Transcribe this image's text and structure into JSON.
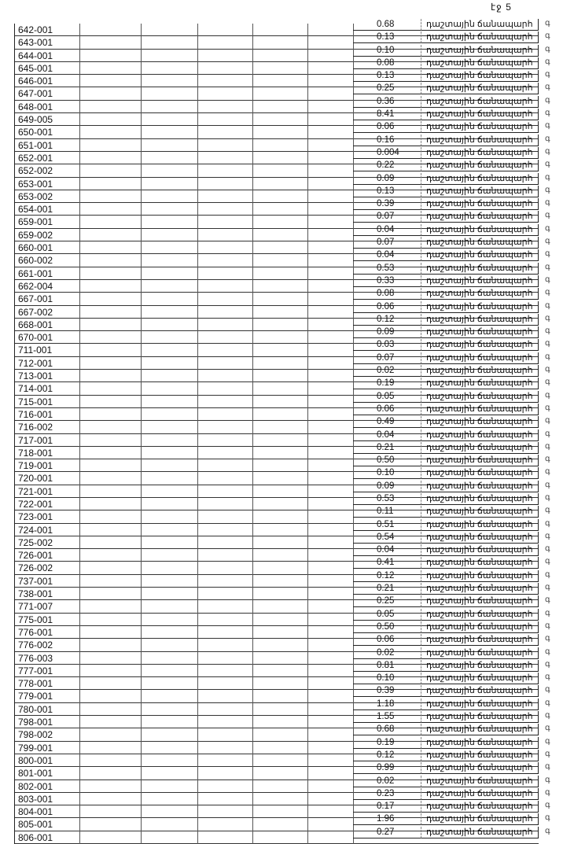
{
  "page_number": "էջ 5",
  "road_type": "դաշտային ճանապարհ",
  "edge_char": "գ",
  "rows": [
    {
      "id": "642-001",
      "area": "0.68"
    },
    {
      "id": "643-001",
      "area": "0.13"
    },
    {
      "id": "644-001",
      "area": "0.10"
    },
    {
      "id": "645-001",
      "area": "0.08"
    },
    {
      "id": "646-001",
      "area": "0.13"
    },
    {
      "id": "647-001",
      "area": "0.25"
    },
    {
      "id": "648-001",
      "area": "0.36"
    },
    {
      "id": "649-005",
      "area": "8.41"
    },
    {
      "id": "650-001",
      "area": "0.06"
    },
    {
      "id": "651-001",
      "area": "0.16"
    },
    {
      "id": "652-001",
      "area": "0.004"
    },
    {
      "id": "652-002",
      "area": "0.22"
    },
    {
      "id": "653-001",
      "area": "0.09"
    },
    {
      "id": "653-002",
      "area": "0.13"
    },
    {
      "id": "654-001",
      "area": "0.39"
    },
    {
      "id": "659-001",
      "area": "0.07"
    },
    {
      "id": "659-002",
      "area": "0.04"
    },
    {
      "id": "660-001",
      "area": "0.07"
    },
    {
      "id": "660-002",
      "area": "0.04"
    },
    {
      "id": "661-001",
      "area": "0.53"
    },
    {
      "id": "662-004",
      "area": "0.33"
    },
    {
      "id": "667-001",
      "area": "0.08"
    },
    {
      "id": "667-002",
      "area": "0.06"
    },
    {
      "id": "668-001",
      "area": "0.12"
    },
    {
      "id": "670-001",
      "area": "0.09"
    },
    {
      "id": "711-001",
      "area": "0.03"
    },
    {
      "id": "712-001",
      "area": "0.07"
    },
    {
      "id": "713-001",
      "area": "0.02"
    },
    {
      "id": "714-001",
      "area": "0.19"
    },
    {
      "id": "715-001",
      "area": "0.05"
    },
    {
      "id": "716-001",
      "area": "0.06"
    },
    {
      "id": "716-002",
      "area": "0.49"
    },
    {
      "id": "717-001",
      "area": "0.04"
    },
    {
      "id": "718-001",
      "area": "0.21"
    },
    {
      "id": "719-001",
      "area": "0.50"
    },
    {
      "id": "720-001",
      "area": "0.10"
    },
    {
      "id": "721-001",
      "area": "0.09"
    },
    {
      "id": "722-001",
      "area": "0.53"
    },
    {
      "id": "723-001",
      "area": "0.11"
    },
    {
      "id": "724-001",
      "area": "0.51"
    },
    {
      "id": "725-002",
      "area": "0.54"
    },
    {
      "id": "726-001",
      "area": "0.04"
    },
    {
      "id": "726-002",
      "area": "0.41"
    },
    {
      "id": "737-001",
      "area": "0.12"
    },
    {
      "id": "738-001",
      "area": "0.21"
    },
    {
      "id": "771-007",
      "area": "0.25"
    },
    {
      "id": "775-001",
      "area": "0.05"
    },
    {
      "id": "776-001",
      "area": "0.50"
    },
    {
      "id": "776-002",
      "area": "0.06"
    },
    {
      "id": "776-003",
      "area": "0.02"
    },
    {
      "id": "777-001",
      "area": "0.81"
    },
    {
      "id": "778-001",
      "area": "0.10"
    },
    {
      "id": "779-001",
      "area": "0.39"
    },
    {
      "id": "780-001",
      "area": "1.18"
    },
    {
      "id": "798-001",
      "area": "1.55"
    },
    {
      "id": "798-002",
      "area": "0.68"
    },
    {
      "id": "799-001",
      "area": "0.19"
    },
    {
      "id": "800-001",
      "area": "0.12"
    },
    {
      "id": "801-001",
      "area": "0.99"
    },
    {
      "id": "802-001",
      "area": "0.02"
    },
    {
      "id": "803-001",
      "area": "0.23"
    },
    {
      "id": "804-001",
      "area": "0.17"
    },
    {
      "id": "805-001",
      "area": "1.96"
    },
    {
      "id": "806-001",
      "area": "0.27"
    }
  ]
}
